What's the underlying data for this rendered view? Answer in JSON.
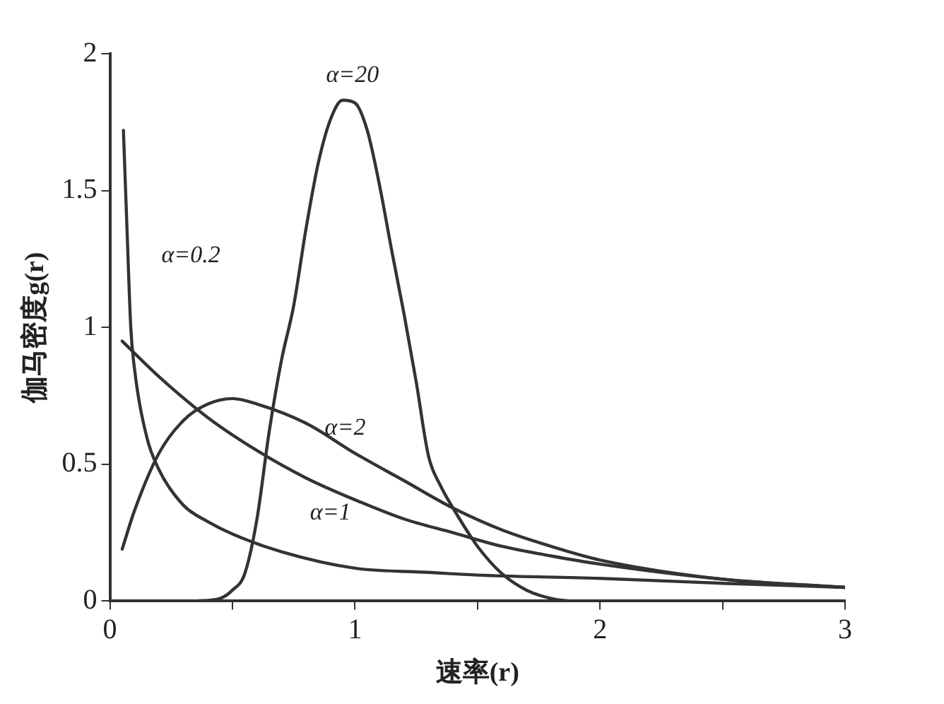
{
  "chart_data": {
    "type": "line",
    "xlabel": "速率(r)",
    "ylabel": "伽马密度g(r)",
    "xlim": [
      0,
      3
    ],
    "xticks": [
      0,
      {
        "value": 0.5,
        "label": null
      },
      1,
      {
        "value": 1.5,
        "label": null
      },
      2,
      {
        "value": 2.5,
        "label": null
      },
      3
    ],
    "ylim": [
      0,
      2
    ],
    "yticks": [
      0,
      0.5,
      1,
      1.5,
      2
    ],
    "grid": false,
    "legend": false,
    "marker": "none",
    "line_style": "solid",
    "series": [
      {
        "name": "α=0.2",
        "color": "#333333",
        "x": [
          0.055,
          0.07,
          0.085,
          0.1,
          0.15,
          0.2,
          0.3,
          0.4,
          0.5,
          0.7,
          1.0,
          1.3,
          1.5,
          2.0,
          2.5,
          3.0
        ],
        "values": [
          1.72,
          1.35,
          1.0,
          0.85,
          0.6,
          0.48,
          0.35,
          0.29,
          0.245,
          0.18,
          0.12,
          0.105,
          0.095,
          0.083,
          0.065,
          0.05
        ]
      },
      {
        "name": "α=1",
        "color": "#333333",
        "x": [
          0.05,
          0.2,
          0.4,
          0.6,
          0.8,
          1.0,
          1.2,
          1.4,
          1.6,
          1.8,
          2.0,
          2.5,
          3.0
        ],
        "values": [
          0.95,
          0.82,
          0.67,
          0.55,
          0.45,
          0.37,
          0.3,
          0.25,
          0.2,
          0.165,
          0.135,
          0.08,
          0.05
        ]
      },
      {
        "name": "α=2",
        "color": "#333333",
        "x": [
          0.05,
          0.1,
          0.2,
          0.3,
          0.4,
          0.5,
          0.6,
          0.8,
          1.0,
          1.2,
          1.4,
          1.6,
          1.8,
          2.0,
          2.5,
          3.0
        ],
        "values": [
          0.19,
          0.33,
          0.54,
          0.66,
          0.72,
          0.74,
          0.72,
          0.65,
          0.54,
          0.44,
          0.34,
          0.26,
          0.2,
          0.15,
          0.08,
          0.05
        ]
      },
      {
        "name": "α=20",
        "color": "#333333",
        "x": [
          0.35,
          0.45,
          0.5,
          0.55,
          0.6,
          0.65,
          0.7,
          0.75,
          0.8,
          0.85,
          0.9,
          0.95,
          1.0,
          1.05,
          1.1,
          1.15,
          1.2,
          1.25,
          1.3,
          1.35,
          1.4,
          1.5,
          1.6,
          1.7,
          1.8,
          1.9,
          3.0
        ],
        "values": [
          0,
          0.01,
          0.04,
          0.1,
          0.3,
          0.62,
          0.88,
          1.08,
          1.36,
          1.6,
          1.76,
          1.83,
          1.82,
          1.72,
          1.52,
          1.28,
          1.05,
          0.8,
          0.53,
          0.42,
          0.34,
          0.2,
          0.1,
          0.04,
          0.01,
          0,
          0
        ]
      }
    ]
  }
}
